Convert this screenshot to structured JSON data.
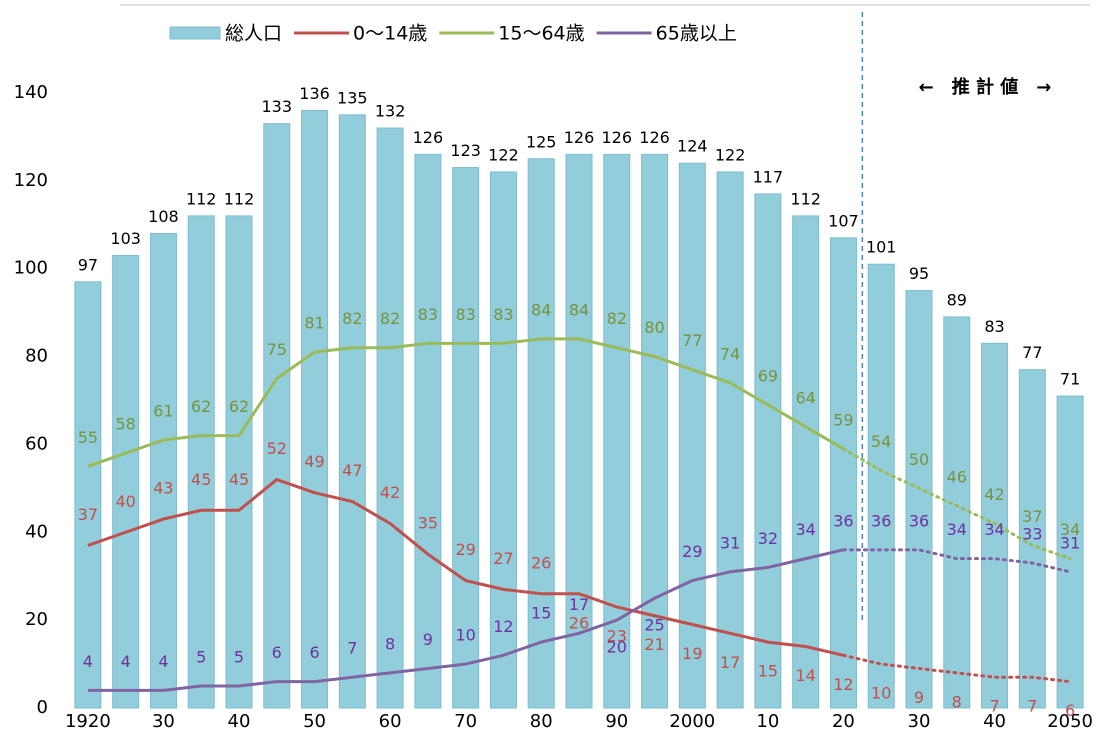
{
  "chart_data": {
    "type": "combo",
    "categories": [
      "1920",
      null,
      "30",
      null,
      "40",
      null,
      "50",
      null,
      "60",
      null,
      "70",
      null,
      "80",
      null,
      "90",
      null,
      "2000",
      null,
      "10",
      null,
      "20",
      null,
      "30",
      null,
      "40",
      null,
      "2050"
    ],
    "series": [
      {
        "name": "総人口",
        "type": "bar",
        "color": "#92cddc",
        "label_color": "#000000",
        "values": [
          97,
          103,
          108,
          112,
          112,
          133,
          136,
          135,
          132,
          126,
          123,
          122,
          125,
          126,
          126,
          126,
          124,
          122,
          117,
          112,
          107,
          101,
          95,
          89,
          83,
          77,
          71
        ]
      },
      {
        "name": "0～14歳",
        "type": "line",
        "color": "#c0504d",
        "label_color": "#c0504d",
        "values": [
          37,
          40,
          43,
          45,
          45,
          52,
          49,
          47,
          42,
          35,
          29,
          27,
          26,
          26,
          23,
          21,
          19,
          17,
          15,
          14,
          12,
          10,
          9,
          8,
          7,
          7,
          6
        ]
      },
      {
        "name": "15～64歳",
        "type": "line",
        "color": "#9bbb59",
        "label_color": "#77933c",
        "values": [
          55,
          58,
          61,
          62,
          62,
          75,
          81,
          82,
          82,
          83,
          83,
          83,
          84,
          84,
          82,
          80,
          77,
          74,
          69,
          64,
          59,
          54,
          50,
          46,
          42,
          37,
          34
        ]
      },
      {
        "name": "65歳以上",
        "type": "line",
        "color": "#8064a2",
        "label_color": "#7030a0",
        "values": [
          4,
          4,
          4,
          5,
          5,
          6,
          6,
          7,
          8,
          9,
          10,
          12,
          15,
          17,
          20,
          25,
          29,
          31,
          32,
          34,
          36,
          36,
          36,
          34,
          34,
          33,
          31
        ]
      }
    ],
    "ylim": [
      0,
      160
    ],
    "yticks": [
      0,
      20,
      40,
      60,
      80,
      100,
      120,
      140
    ],
    "grid": false,
    "legend": "top",
    "projection": {
      "label": "←　推 計 値　→",
      "start_index": 20
    }
  }
}
